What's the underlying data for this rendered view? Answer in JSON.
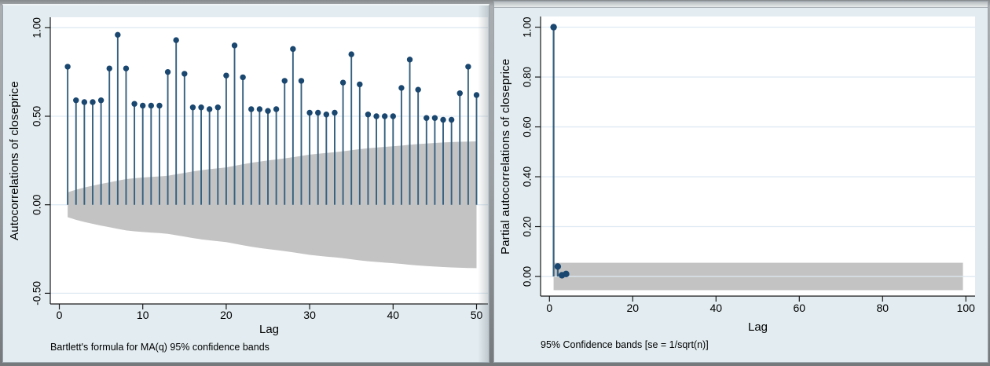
{
  "window_left": {
    "ylabel": "Autocorrelations of closeprice",
    "xlabel": "Lag",
    "note": "Bartlett's formula for MA(q) 95% confidence bands"
  },
  "window_right": {
    "ylabel": "Partial autocorrelations of closeprice",
    "xlabel": "Lag",
    "note": "95% Confidence bands [se = 1/sqrt(n)]"
  },
  "colors": {
    "background": "#e3edf1",
    "plot_background": "#ffffff",
    "gridline": "#dfeaf3",
    "band": "#c3c3c3",
    "spike_line": "#35607f",
    "spike_dot": "#1a476f",
    "axis": "#1a1a1a"
  },
  "chart_data": [
    {
      "type": "stem",
      "name": "autocorrelations",
      "ylabel": "Autocorrelations of closeprice",
      "xlabel": "Lag",
      "note": "Bartlett's formula for MA(q) 95% confidence bands",
      "x": [
        1,
        2,
        3,
        4,
        5,
        6,
        7,
        8,
        9,
        10,
        11,
        12,
        13,
        14,
        15,
        16,
        17,
        18,
        19,
        20,
        21,
        22,
        23,
        24,
        25,
        26,
        27,
        28,
        29,
        30,
        31,
        32,
        33,
        34,
        35,
        36,
        37,
        38,
        39,
        40,
        41,
        42,
        43,
        44,
        45,
        46,
        47,
        48,
        49,
        50
      ],
      "values": [
        0.78,
        0.59,
        0.58,
        0.58,
        0.59,
        0.77,
        0.96,
        0.77,
        0.57,
        0.56,
        0.56,
        0.56,
        0.75,
        0.93,
        0.74,
        0.55,
        0.55,
        0.54,
        0.55,
        0.73,
        0.9,
        0.72,
        0.54,
        0.54,
        0.53,
        0.54,
        0.7,
        0.88,
        0.7,
        0.52,
        0.52,
        0.51,
        0.52,
        0.69,
        0.85,
        0.68,
        0.51,
        0.5,
        0.5,
        0.5,
        0.66,
        0.82,
        0.65,
        0.49,
        0.49,
        0.48,
        0.48,
        0.63,
        0.78,
        0.62
      ],
      "band": {
        "label": "Bartlett 95% confidence band",
        "symmetric": true,
        "upper": [
          0.07,
          0.085,
          0.097,
          0.108,
          0.118,
          0.127,
          0.136,
          0.145,
          0.15,
          0.154,
          0.157,
          0.16,
          0.164,
          0.172,
          0.18,
          0.188,
          0.195,
          0.201,
          0.206,
          0.211,
          0.22,
          0.229,
          0.237,
          0.244,
          0.25,
          0.256,
          0.262,
          0.269,
          0.276,
          0.283,
          0.288,
          0.293,
          0.297,
          0.302,
          0.308,
          0.314,
          0.319,
          0.323,
          0.327,
          0.33,
          0.334,
          0.339,
          0.343,
          0.346,
          0.349,
          0.352,
          0.354,
          0.356,
          0.357,
          0.358
        ]
      },
      "yticks": [
        {
          "v": 1.0,
          "label": "1.00"
        },
        {
          "v": 0.5,
          "label": "0.50"
        },
        {
          "v": 0.0,
          "label": "0.00"
        },
        {
          "v": -0.5,
          "label": "-0.50"
        }
      ],
      "xticks": [
        {
          "v": 0,
          "label": "0"
        },
        {
          "v": 10,
          "label": "10"
        },
        {
          "v": 20,
          "label": "20"
        },
        {
          "v": 30,
          "label": "30"
        },
        {
          "v": 40,
          "label": "40"
        },
        {
          "v": 50,
          "label": "50"
        }
      ],
      "ylim": [
        -0.56,
        1.06
      ],
      "xlim": [
        -1,
        51.5
      ],
      "grid": true,
      "legend": "none"
    },
    {
      "type": "stem",
      "name": "partial-autocorrelations",
      "ylabel": "Partial autocorrelations of closeprice",
      "xlabel": "Lag",
      "note": "95% Confidence bands [se = 1/sqrt(n)]",
      "x": [
        1,
        2,
        3,
        4
      ],
      "values": [
        1.0,
        0.04,
        0.005,
        0.01
      ],
      "band": {
        "label": "95% confidence band",
        "upper_const": 0.055,
        "lower_const": -0.055,
        "x_from": 1,
        "x_to": 99.3
      },
      "yticks": [
        {
          "v": 0.0,
          "label": "0.00"
        },
        {
          "v": 0.2,
          "label": "0.20"
        },
        {
          "v": 0.4,
          "label": "0.40"
        },
        {
          "v": 0.6,
          "label": "0.60"
        },
        {
          "v": 0.8,
          "label": "0.80"
        },
        {
          "v": 1.0,
          "label": "1.00"
        }
      ],
      "xticks": [
        {
          "v": 0,
          "label": "0"
        },
        {
          "v": 20,
          "label": "20"
        },
        {
          "v": 40,
          "label": "40"
        },
        {
          "v": 60,
          "label": "60"
        },
        {
          "v": 80,
          "label": "80"
        },
        {
          "v": 100,
          "label": "100"
        }
      ],
      "ylim": [
        -0.08,
        1.05
      ],
      "xlim": [
        -2,
        103
      ],
      "grid": true,
      "legend": "none"
    }
  ]
}
